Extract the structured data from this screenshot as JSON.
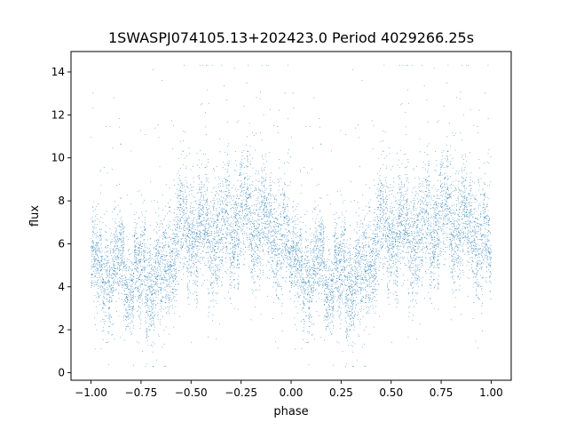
{
  "chart_data": {
    "type": "scatter",
    "title": "1SWASPJ074105.13+202423.0 Period 4029266.25s",
    "xlabel": "phase",
    "ylabel": "flux",
    "xlim": [
      -1.1,
      1.1
    ],
    "ylim": [
      -0.35,
      14.95
    ],
    "xticks": [
      -1.0,
      -0.75,
      -0.5,
      -0.25,
      0.0,
      0.25,
      0.5,
      0.75,
      1.0
    ],
    "xtick_labels": [
      "−1.00",
      "−0.75",
      "−0.50",
      "−0.25",
      "0.00",
      "0.25",
      "0.50",
      "0.75",
      "1.00"
    ],
    "yticks": [
      0,
      2,
      4,
      6,
      8,
      10,
      12,
      14
    ],
    "ytick_labels": [
      "0",
      "2",
      "4",
      "6",
      "8",
      "10",
      "12",
      "14"
    ],
    "grid": false,
    "legend": "none",
    "point_color": "#1f77b4",
    "phase_profile": {
      "phase": [
        0.0,
        0.05,
        0.1,
        0.15,
        0.2,
        0.25,
        0.3,
        0.35,
        0.4,
        0.45,
        0.5,
        0.55,
        0.6,
        0.65,
        0.7,
        0.75,
        0.8,
        0.85,
        0.9,
        0.95,
        1.0
      ],
      "flux_median": [
        5.0,
        4.6,
        4.5,
        4.8,
        4.7,
        4.3,
        4.2,
        4.5,
        5.8,
        6.8,
        6.9,
        6.6,
        6.7,
        6.4,
        6.9,
        7.2,
        7.1,
        6.8,
        6.5,
        6.6,
        5.0
      ],
      "flux_spread": [
        1.2,
        1.3,
        1.4,
        1.4,
        1.3,
        1.5,
        1.6,
        1.6,
        1.5,
        1.6,
        1.7,
        1.6,
        1.7,
        1.7,
        1.7,
        1.6,
        1.6,
        1.6,
        1.5,
        1.6,
        1.2
      ],
      "flux_range": [
        0.3,
        14.3
      ]
    }
  }
}
